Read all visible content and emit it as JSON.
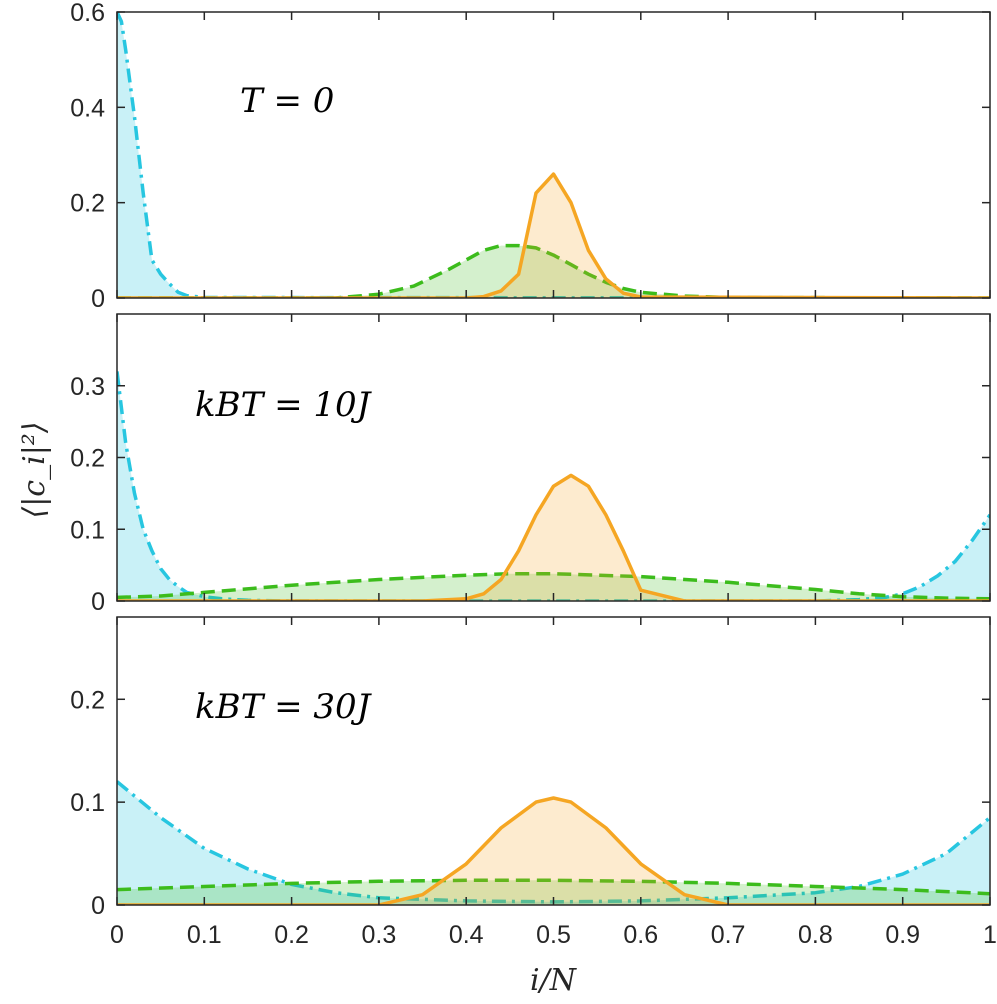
{
  "chart_data": {
    "type": "area",
    "xlabel": "i/N",
    "ylabel": "⟨|c_i|²⟩",
    "xlim": [
      0,
      1
    ],
    "xticks": [
      0,
      0.1,
      0.2,
      0.3,
      0.4,
      0.5,
      0.6,
      0.7,
      0.8,
      0.9,
      1
    ],
    "xtick_labels": [
      "0",
      "0.1",
      "0.2",
      "0.3",
      "0.4",
      "0.5",
      "0.6",
      "0.7",
      "0.8",
      "0.9",
      "1"
    ],
    "colors": {
      "orange": "#f5a623",
      "green": "#3cbc1c",
      "cyan": "#27c6e0",
      "axis": "#262626"
    },
    "series_legend": [
      {
        "name": "orange",
        "style": "solid"
      },
      {
        "name": "green",
        "style": "dashed"
      },
      {
        "name": "cyan",
        "style": "dash-dot"
      }
    ],
    "panels": [
      {
        "annotation": "T = 0",
        "ylim": [
          0,
          0.6
        ],
        "yticks": [
          0,
          0.2,
          0.4,
          0.6
        ],
        "ytick_labels": [
          "0",
          "0.2",
          "0.4",
          "0.6"
        ],
        "series": [
          {
            "name": "orange",
            "x": [
              0,
              0.4,
              0.42,
              0.44,
              0.46,
              0.48,
              0.5,
              0.52,
              0.54,
              0.56,
              0.58,
              0.6,
              1.0
            ],
            "values": [
              0,
              0,
              0.003,
              0.015,
              0.05,
              0.22,
              0.26,
              0.2,
              0.1,
              0.04,
              0.01,
              0.002,
              0
            ]
          },
          {
            "name": "green",
            "x": [
              0,
              0.25,
              0.3,
              0.34,
              0.38,
              0.4,
              0.42,
              0.44,
              0.46,
              0.48,
              0.5,
              0.52,
              0.54,
              0.56,
              0.58,
              0.6,
              0.65,
              0.7,
              1.0
            ],
            "values": [
              0,
              0,
              0.008,
              0.025,
              0.06,
              0.08,
              0.1,
              0.11,
              0.11,
              0.105,
              0.09,
              0.07,
              0.05,
              0.033,
              0.02,
              0.012,
              0.004,
              0.001,
              0
            ]
          },
          {
            "name": "cyan",
            "x": [
              0,
              0.005,
              0.01,
              0.02,
              0.03,
              0.04,
              0.05,
              0.06,
              0.07,
              0.08,
              0.1,
              1.0
            ],
            "values": [
              0.6,
              0.58,
              0.52,
              0.38,
              0.22,
              0.08,
              0.05,
              0.03,
              0.012,
              0.005,
              0.001,
              0
            ]
          }
        ]
      },
      {
        "annotation": "kBT = 10J",
        "ylim": [
          0,
          0.4
        ],
        "yticks": [
          0,
          0.1,
          0.2,
          0.3
        ],
        "ytick_labels": [
          "0",
          "0.1",
          "0.2",
          "0.3"
        ],
        "series": [
          {
            "name": "orange",
            "x": [
              0,
              0.35,
              0.4,
              0.42,
              0.44,
              0.46,
              0.48,
              0.5,
              0.52,
              0.54,
              0.56,
              0.58,
              0.6,
              0.65,
              1.0
            ],
            "values": [
              0,
              0,
              0.003,
              0.01,
              0.03,
              0.07,
              0.12,
              0.16,
              0.175,
              0.16,
              0.12,
              0.07,
              0.015,
              0,
              0
            ]
          },
          {
            "name": "green",
            "x": [
              0,
              0.05,
              0.1,
              0.2,
              0.3,
              0.4,
              0.45,
              0.5,
              0.55,
              0.6,
              0.7,
              0.8,
              0.85,
              0.9,
              0.95,
              1.0
            ],
            "values": [
              0.005,
              0.007,
              0.012,
              0.022,
              0.03,
              0.036,
              0.038,
              0.038,
              0.036,
              0.034,
              0.026,
              0.016,
              0.01,
              0.006,
              0.004,
              0.003
            ]
          },
          {
            "name": "cyan",
            "x": [
              0,
              0.01,
              0.02,
              0.03,
              0.04,
              0.05,
              0.06,
              0.07,
              0.08,
              0.1,
              0.12,
              0.15,
              0.2,
              0.5,
              0.8,
              0.85,
              0.88,
              0.9,
              0.92,
              0.94,
              0.96,
              0.98,
              1.0
            ],
            "values": [
              0.32,
              0.22,
              0.15,
              0.1,
              0.07,
              0.045,
              0.03,
              0.02,
              0.012,
              0.006,
              0.003,
              0.001,
              0,
              0,
              0,
              0.002,
              0.005,
              0.01,
              0.02,
              0.035,
              0.055,
              0.085,
              0.12
            ]
          }
        ]
      },
      {
        "annotation": "kBT = 30J",
        "ylim": [
          0,
          0.28
        ],
        "yticks": [
          0,
          0.1,
          0.2
        ],
        "ytick_labels": [
          "0",
          "0.1",
          "0.2"
        ],
        "series": [
          {
            "name": "orange",
            "x": [
              0,
              0.3,
              0.35,
              0.4,
              0.44,
              0.48,
              0.5,
              0.52,
              0.56,
              0.6,
              0.65,
              0.7,
              1.0
            ],
            "values": [
              0,
              0,
              0.01,
              0.04,
              0.075,
              0.1,
              0.104,
              0.1,
              0.075,
              0.04,
              0.01,
              0,
              0
            ]
          },
          {
            "name": "green",
            "x": [
              0,
              0.1,
              0.2,
              0.3,
              0.4,
              0.5,
              0.6,
              0.7,
              0.8,
              0.9,
              1.0
            ],
            "values": [
              0.015,
              0.018,
              0.021,
              0.023,
              0.024,
              0.024,
              0.023,
              0.021,
              0.018,
              0.015,
              0.011
            ]
          },
          {
            "name": "cyan",
            "x": [
              0,
              0.05,
              0.1,
              0.15,
              0.2,
              0.25,
              0.3,
              0.4,
              0.5,
              0.6,
              0.7,
              0.8,
              0.85,
              0.9,
              0.95,
              1.0
            ],
            "values": [
              0.12,
              0.085,
              0.055,
              0.035,
              0.02,
              0.012,
              0.007,
              0.004,
              0.003,
              0.004,
              0.007,
              0.012,
              0.018,
              0.03,
              0.05,
              0.085
            ]
          }
        ]
      }
    ]
  }
}
